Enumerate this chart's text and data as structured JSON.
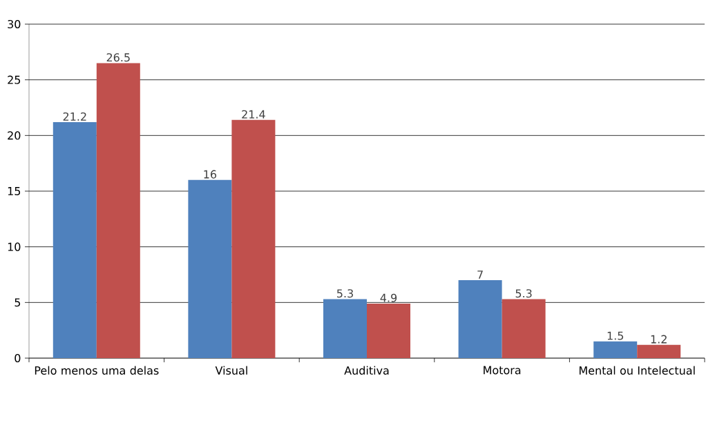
{
  "chart_data": {
    "type": "bar",
    "categories": [
      "Pelo menos uma delas",
      "Visual",
      "Auditiva",
      "Motora",
      "Mental ou Intelectual"
    ],
    "series": [
      {
        "color": "#4f81bd",
        "values": [
          21.2,
          16,
          5.3,
          7,
          1.5
        ]
      },
      {
        "color": "#c0504d",
        "values": [
          26.5,
          21.4,
          4.9,
          5.3,
          1.2
        ]
      }
    ],
    "ylim": [
      0,
      30
    ],
    "yticks": [
      0,
      5,
      10,
      15,
      20,
      25,
      30
    ],
    "grid": "y",
    "data_labels": true
  }
}
